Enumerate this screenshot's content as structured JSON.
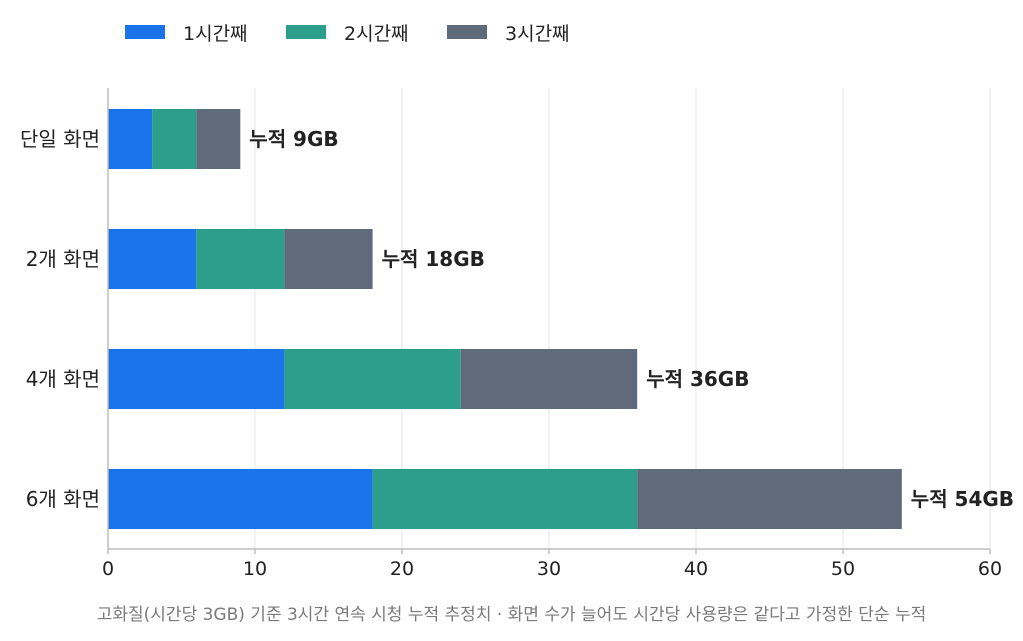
{
  "colors": {
    "hour1": "#1a73e8",
    "hour2": "#2e9e8c",
    "hour3": "#5f6b7a",
    "grid": "#e6e6e6",
    "axis": "#bdbdbd",
    "text": "#222222",
    "footnote": "#7a7a7a"
  },
  "chart_data": {
    "type": "bar",
    "orientation": "horizontal",
    "stacked": true,
    "categories": [
      "단일 화면",
      "2개 화면",
      "4개 화면",
      "6개 화면"
    ],
    "series": [
      {
        "name": "1시간째",
        "values": [
          3,
          6,
          12,
          18
        ]
      },
      {
        "name": "2시간째",
        "values": [
          3,
          6,
          12,
          18
        ]
      },
      {
        "name": "3시간째",
        "values": [
          3,
          6,
          12,
          18
        ]
      }
    ],
    "total_labels": [
      "누적 9GB",
      "누적 18GB",
      "누적 36GB",
      "누적 54GB"
    ],
    "xlim": [
      0,
      60
    ],
    "xticks": [
      0,
      10,
      20,
      30,
      40,
      50,
      60
    ],
    "grid": "vertical",
    "legend_position": "top-left",
    "title": "",
    "xlabel": "",
    "ylabel": ""
  },
  "footnote": "고화질(시간당 3GB) 기준 3시간 연속 시청 누적 추정치 · 화면 수가 늘어도 시간당 사용량은 같다고 가정한 단순 누적"
}
